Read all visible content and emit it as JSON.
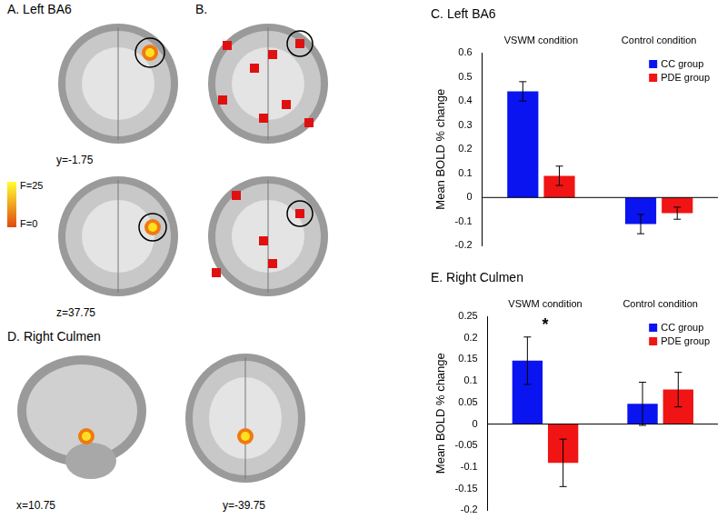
{
  "figure": {
    "panels": [
      {
        "label": "A. Left BA6",
        "slices": [
          "y=-1.75",
          "z=37.75"
        ],
        "colorbar": [
          "F=25",
          "F=0"
        ]
      },
      {
        "label": "B."
      },
      {
        "label": "D. Right Culmen",
        "slices": [
          "x=10.75",
          "y=-39.75"
        ]
      }
    ]
  },
  "chart_data": [
    {
      "type": "bar",
      "title": "C. Left BA6",
      "y_label": "Mean BOLD % change",
      "categories": [
        "VSWM condition",
        "Control condition"
      ],
      "series": [
        {
          "name": "CC group",
          "color": "#0a14f0",
          "values": [
            0.44,
            -0.11
          ],
          "errors": [
            0.04,
            0.04
          ]
        },
        {
          "name": "PDE group",
          "color": "#f01414",
          "values": [
            0.09,
            -0.065
          ],
          "errors": [
            0.04,
            0.025
          ]
        }
      ],
      "ylim": [
        -0.2,
        0.6
      ],
      "yticks": [
        -0.2,
        -0.1,
        0,
        0.1,
        0.2,
        0.3,
        0.4,
        0.5,
        0.6
      ],
      "legend": "top-right",
      "grid": false
    },
    {
      "type": "bar",
      "title": "E. Right Culmen",
      "y_label": "Mean BOLD % change",
      "categories": [
        "VSWM condition",
        "Control condition"
      ],
      "series": [
        {
          "name": "CC group",
          "color": "#0a14f0",
          "values": [
            0.147,
            0.047
          ],
          "errors": [
            0.055,
            0.05
          ]
        },
        {
          "name": "PDE group",
          "color": "#f01414",
          "values": [
            -0.09,
            0.08
          ],
          "errors": [
            0.055,
            0.04
          ]
        }
      ],
      "ylim": [
        -0.2,
        0.25
      ],
      "yticks": [
        -0.2,
        -0.15,
        -0.1,
        -0.05,
        0,
        0.05,
        0.1,
        0.15,
        0.2,
        0.25
      ],
      "annotations": [
        {
          "text": "*",
          "category": "VSWM condition"
        }
      ],
      "legend": "top-right",
      "grid": false
    }
  ]
}
